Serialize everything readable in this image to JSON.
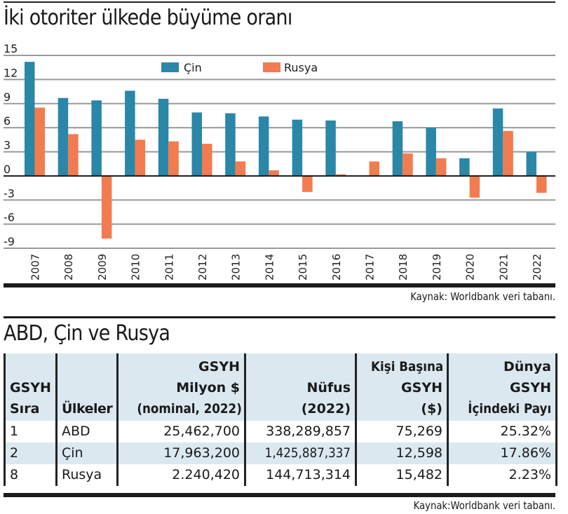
{
  "chart_data": {
    "type": "bar",
    "title": "İki otoriter ülkede büyüme oranı",
    "xlabel": "",
    "ylabel": "",
    "ylim": [
      -9,
      15
    ],
    "yticks": [
      15,
      12,
      9,
      6,
      3,
      0,
      -3,
      -6,
      -9
    ],
    "ytick_labels": [
      "15",
      "12",
      "9",
      "6",
      "3",
      "0",
      "-3",
      "-6",
      "-9"
    ],
    "grid": true,
    "legend_position": "top-center",
    "categories": [
      "2007",
      "2008",
      "2009",
      "2010",
      "2011",
      "2012",
      "2013",
      "2014",
      "2015",
      "2016",
      "2017",
      "2018",
      "2019",
      "2020",
      "2021",
      "2022"
    ],
    "series": [
      {
        "name": "Çin",
        "color": "#2a87a8",
        "values": [
          14.2,
          9.7,
          9.4,
          10.6,
          9.6,
          7.9,
          7.8,
          7.4,
          7.0,
          6.9,
          null,
          6.8,
          6.0,
          2.2,
          8.4,
          3.0
        ]
      },
      {
        "name": "Rusya",
        "color": "#f27b4f",
        "values": [
          8.5,
          5.2,
          -7.8,
          4.5,
          4.3,
          4.0,
          1.8,
          0.7,
          -2.0,
          0.2,
          1.8,
          2.8,
          2.2,
          -2.7,
          5.6,
          -2.1
        ]
      }
    ],
    "source": "Kaynak: Worldbank veri tabanı."
  },
  "table": {
    "title": "ABD, Çin ve Rusya",
    "header_bg": "#dbe8f0",
    "columns": [
      {
        "lines": [
          "GSYH",
          "Sıra"
        ]
      },
      {
        "lines": [
          "Ülkeler"
        ]
      },
      {
        "lines": [
          "GSYH",
          "Milyon $",
          "(nominal, 2022)"
        ]
      },
      {
        "lines": [
          "Nüfus",
          "(2022)"
        ]
      },
      {
        "lines": [
          "Kişi Başına",
          "GSYH",
          "($)"
        ]
      },
      {
        "lines": [
          "Dünya",
          "GSYH",
          "İçindeki Payı"
        ]
      }
    ],
    "rows": [
      {
        "rank": "1",
        "country": "ABD",
        "gdp": "25,462,700",
        "population": "338,289,857",
        "per_capita": "75,269",
        "world_share": "25.32%"
      },
      {
        "rank": "2",
        "country": "Çin",
        "gdp": "17,963,200",
        "population": "1,425,887,337",
        "per_capita": "12,598",
        "world_share": "17.86%"
      },
      {
        "rank": "8",
        "country": "Rusya",
        "gdp": "2.240,420",
        "population": "144,713,314",
        "per_capita": "15,482",
        "world_share": "2.23%"
      }
    ],
    "source": "Kaynak:Worldbank veri tabanı."
  }
}
